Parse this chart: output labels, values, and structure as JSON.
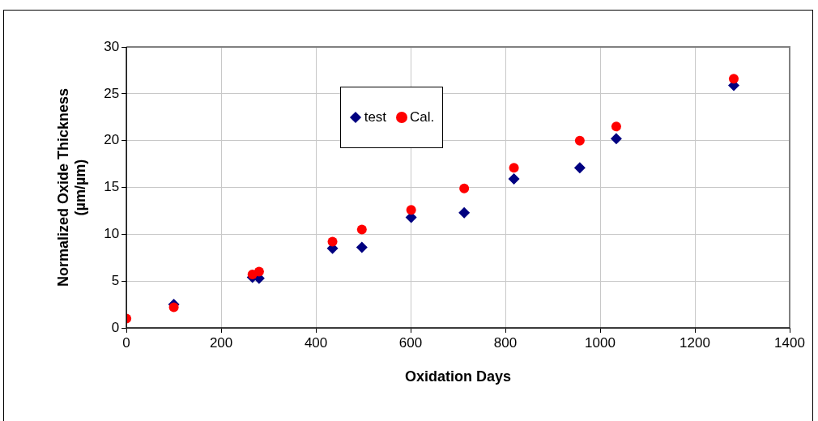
{
  "chart_data": {
    "type": "scatter",
    "xlabel": "Oxidation Days",
    "ylabel": "Normalized Oxide Thickness\n(µm/µm)",
    "xlim": [
      0,
      1400
    ],
    "xticks": [
      0,
      200,
      400,
      600,
      800,
      1000,
      1200,
      1400
    ],
    "ylim": [
      0,
      30
    ],
    "yticks": [
      0,
      5,
      10,
      15,
      20,
      25,
      30
    ],
    "grid": true,
    "legend": "top",
    "series": [
      {
        "name": "test",
        "color": "#000080",
        "marker": "diamond",
        "x": [
          100,
          266,
          280,
          435,
          497,
          601,
          713,
          818,
          957,
          1034,
          1282
        ],
        "values": [
          2.5,
          5.4,
          5.3,
          8.5,
          8.6,
          11.8,
          12.3,
          15.9,
          17.1,
          20.2,
          25.9
        ]
      },
      {
        "name": "Cal.",
        "color": "#ff0000",
        "marker": "circle",
        "x": [
          0,
          100,
          266,
          280,
          435,
          497,
          601,
          713,
          818,
          957,
          1034,
          1282
        ],
        "values": [
          1.0,
          2.2,
          5.7,
          6.0,
          9.2,
          10.5,
          12.6,
          14.9,
          17.1,
          20.0,
          21.5,
          26.6
        ]
      }
    ]
  }
}
